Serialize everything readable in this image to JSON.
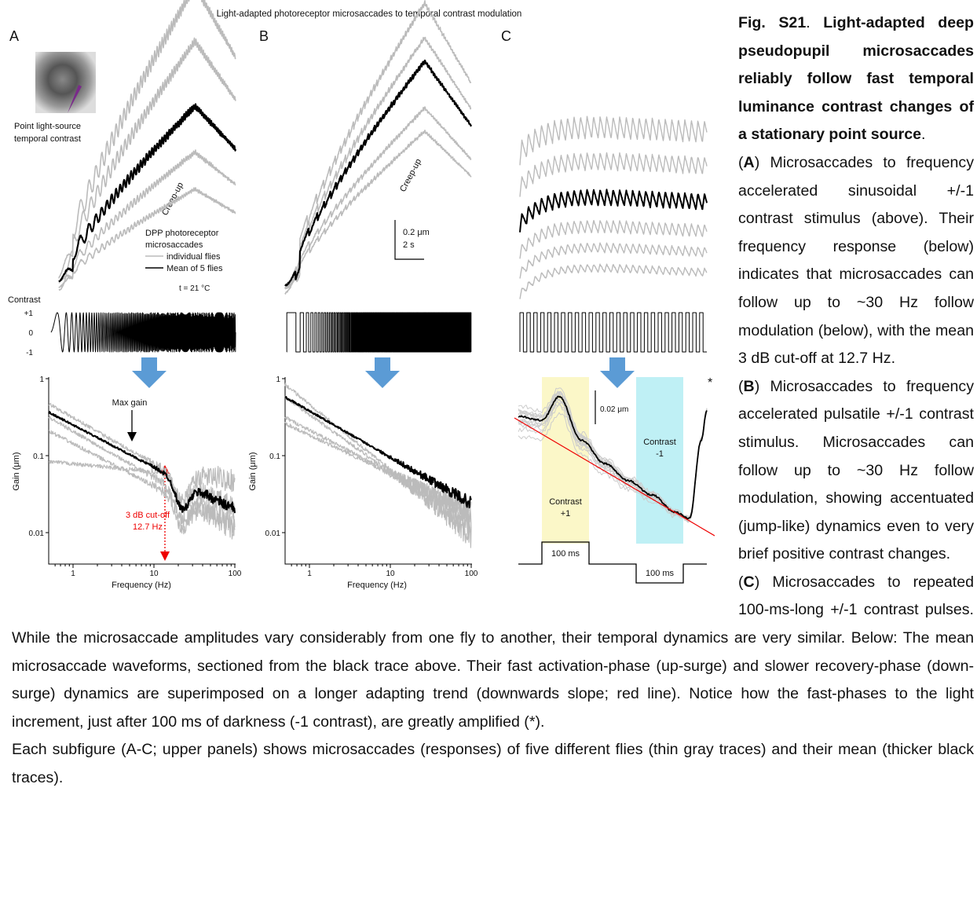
{
  "figure": {
    "title": "Light-adapted photoreceptor microsaccades to temporal contrast modulation",
    "panel_labels": [
      "A",
      "B",
      "C"
    ],
    "inset_label": [
      "Point light-source",
      "temporal contrast"
    ],
    "creep_up": [
      "Creep-up",
      "Creep-up"
    ],
    "legend": {
      "title": [
        "DPP photoreceptor",
        "microsaccades"
      ],
      "entries": [
        "individual flies",
        "Mean of 5 flies"
      ],
      "temperature": "t = 21 °C"
    },
    "contrast_axis": {
      "label": "Contrast",
      "ticks": [
        "+1",
        "0",
        "-1"
      ]
    },
    "scale_bar_b": [
      "0.2 μm",
      "2 s"
    ],
    "gain_axis": {
      "ylabel": "Gain (μm)",
      "yticks": [
        "1",
        "0.1",
        "0.01"
      ],
      "xlabel": "Frequency (Hz)",
      "xticks": [
        "1",
        "10",
        "100"
      ]
    },
    "max_gain": "Max gain",
    "cutoff": [
      "3 dB cut-off",
      "12.7 Hz"
    ],
    "panel_c": {
      "scale_bar": "0.02 μm",
      "contrast_minus": [
        "Contrast",
        "-1"
      ],
      "contrast_plus": [
        "Contrast",
        "+1"
      ],
      "pulse_labels": [
        "100 ms",
        "100 ms"
      ],
      "asterisk": "*"
    }
  },
  "caption": {
    "paragraphs": [
      [
        {
          "text": "Fig. S21",
          "bold": true
        },
        {
          "text": ". ",
          "bold": false
        },
        {
          "text": "Light-adapted deep pseudopupil microsaccades reliably follow fast temporal luminance contrast changes of a stationary point source",
          "bold": true
        },
        {
          "text": ".",
          "bold": false
        }
      ],
      [
        {
          "text": "(",
          "bold": false
        },
        {
          "text": "A",
          "bold": true
        },
        {
          "text": ") Microsaccades to frequency accelerated sinusoidal +/-1 contrast stimulus (above). Their frequency response (below) indicates that microsaccades can follow up to ~30 Hz follow modulation (below), with the mean 3 dB cut-off at 12.7 Hz.",
          "bold": false
        }
      ],
      [
        {
          "text": "(",
          "bold": false
        },
        {
          "text": "B",
          "bold": true
        },
        {
          "text": ") Microsaccades to frequency accelerated pulsatile +/-1 contrast stimulus. Microsaccades can follow up to ~30 Hz follow modulation, showing accentuated (jump-like) dynamics even to very brief positive contrast changes.",
          "bold": false
        }
      ],
      [
        {
          "text": "(",
          "bold": false
        },
        {
          "text": "C",
          "bold": true
        },
        {
          "text": ") Microsaccades to repeated 100-ms-long +/-1 contrast pulses. While the microsaccade amplitudes vary considerably from one fly to another, their temporal dynamics are very similar. Below: The mean microsaccade waveforms, sectioned from the black trace above. Their fast activation-phase (up-surge) and slower recovery-phase (down-surge) dynamics are superimposed on a longer adapting trend (downwards slope; red line). Notice how the fast-phases to the light increment, just after 100 ms of darkness (-1 contrast), are greatly amplified (*).",
          "bold": false
        }
      ],
      [
        {
          "text": "Each subfigure (A-C; upper panels) shows microsaccades (responses) of five different flies (thin gray traces) and their mean (thicker black traces).",
          "bold": false
        }
      ]
    ]
  }
}
